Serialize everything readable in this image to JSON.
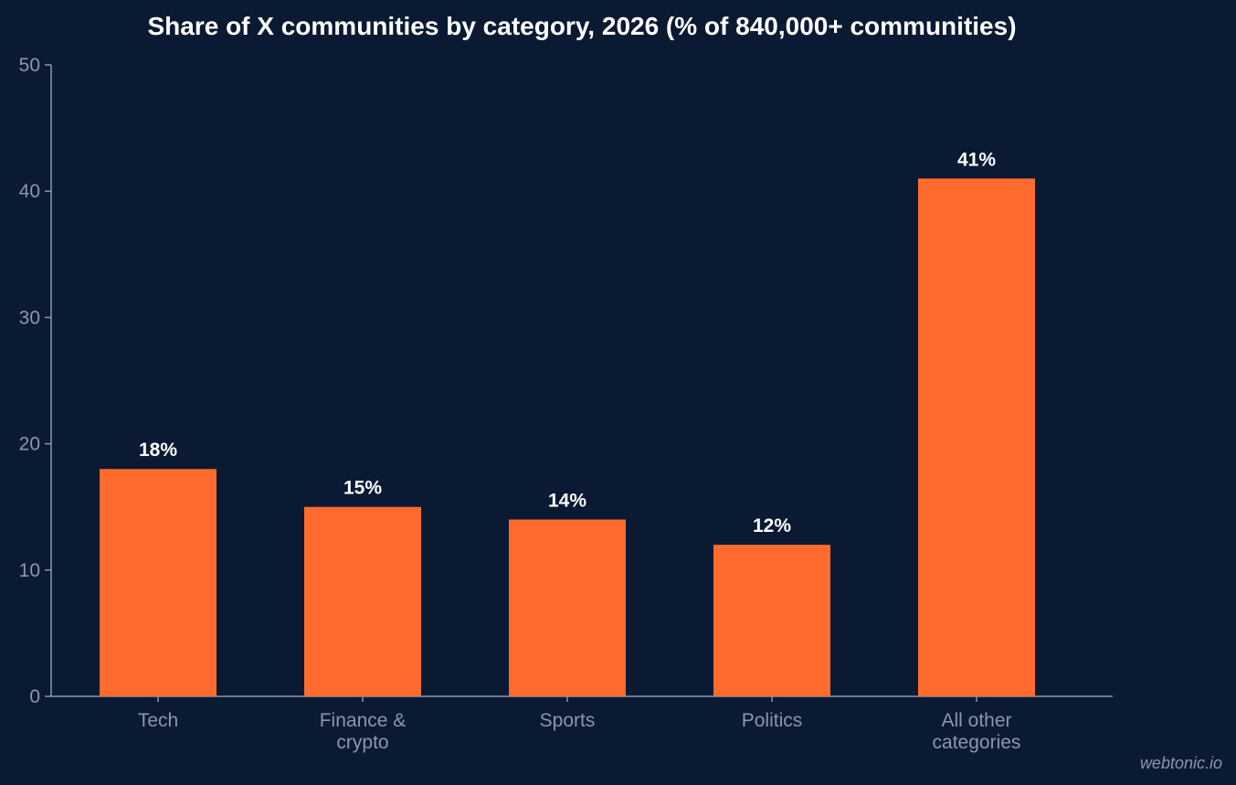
{
  "chart_data": {
    "type": "bar",
    "title": "Share of X communities by category, 2026 (% of 840,000+ communities)",
    "xlabel": "",
    "ylabel": "",
    "ylim": [
      0,
      50
    ],
    "yticks": [
      0,
      10,
      20,
      30,
      40,
      50
    ],
    "categories": [
      [
        "Tech"
      ],
      [
        "Finance &",
        "crypto"
      ],
      [
        "Sports"
      ],
      [
        "Politics"
      ],
      [
        "All other",
        "categories"
      ]
    ],
    "values": [
      18,
      15,
      14,
      12,
      41
    ],
    "data_labels": [
      "18%",
      "15%",
      "14%",
      "12%",
      "41%"
    ],
    "grid": false,
    "legend": "none"
  },
  "colors": {
    "background": "#0b1a33",
    "bar": "#ff6b2e",
    "axis": "#8a96ab",
    "tick_text": "#8a96ab",
    "title_text": "#ffffff",
    "data_label_text": "#ffffff",
    "watermark_text": "#8a96ab"
  },
  "watermark": "webtonic.io"
}
